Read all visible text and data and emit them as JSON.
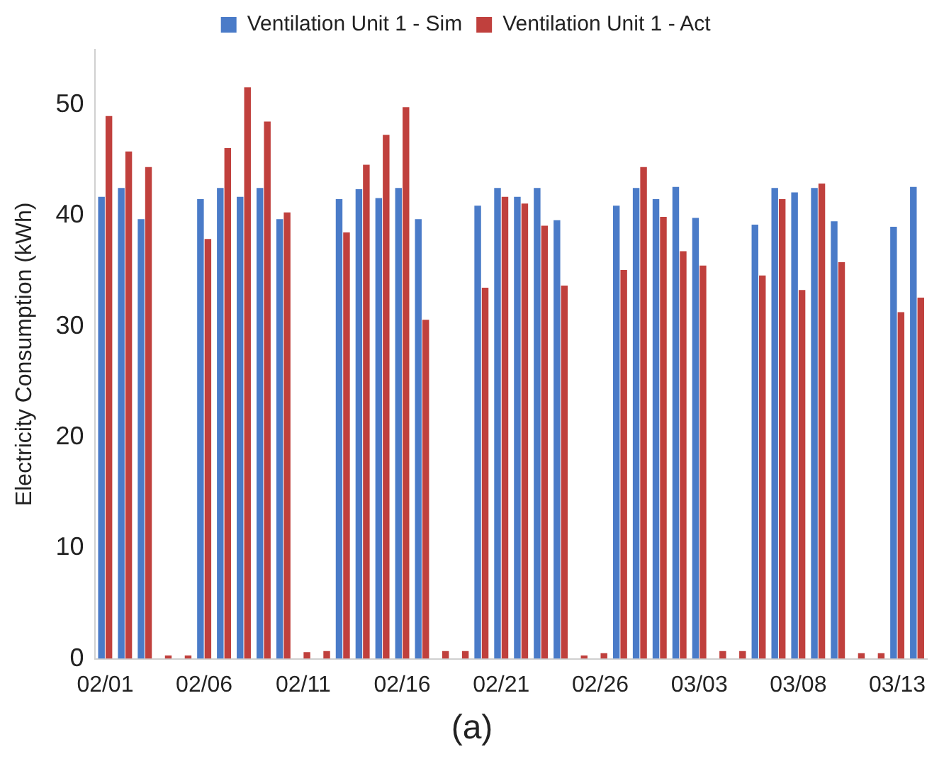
{
  "chart_data": {
    "type": "bar",
    "ylabel": "Electricity Consumption (kWh)",
    "categories": [
      "02/01",
      null,
      null,
      null,
      null,
      "02/06",
      null,
      null,
      null,
      null,
      "02/11",
      null,
      null,
      null,
      null,
      "02/16",
      null,
      null,
      null,
      null,
      "02/21",
      null,
      null,
      null,
      null,
      "02/26",
      null,
      null,
      null,
      null,
      "03/03",
      null,
      null,
      null,
      null,
      "03/08",
      null,
      null,
      null,
      null,
      "03/13",
      null
    ],
    "series": [
      {
        "name": "Ventilation Unit 1 - Sim",
        "color": "#4a7bc8",
        "values": [
          41.7,
          42.5,
          39.7,
          0,
          0,
          41.5,
          42.5,
          41.7,
          42.5,
          39.7,
          0,
          0,
          41.5,
          42.4,
          41.6,
          42.5,
          39.7,
          0,
          0,
          40.9,
          42.5,
          41.7,
          42.5,
          39.6,
          0,
          0,
          40.9,
          42.5,
          41.5,
          42.6,
          39.8,
          0,
          0,
          39.2,
          42.5,
          42.1,
          42.5,
          39.5,
          0,
          0,
          39.0,
          42.6
        ]
      },
      {
        "name": "Ventilation Unit 1 - Act",
        "color": "#c0403d",
        "values": [
          49.0,
          45.8,
          44.4,
          0.3,
          0.3,
          37.9,
          46.1,
          51.6,
          48.5,
          40.3,
          0.6,
          0.7,
          38.5,
          44.6,
          47.3,
          49.8,
          30.6,
          0.7,
          0.7,
          33.5,
          41.7,
          41.1,
          39.1,
          33.7,
          0.3,
          0.5,
          35.1,
          44.4,
          39.9,
          36.8,
          35.5,
          0.7,
          0.7,
          34.6,
          41.5,
          33.3,
          42.9,
          35.8,
          0.5,
          0.5,
          31.3,
          32.6
        ]
      }
    ],
    "ylim": [
      0,
      55
    ],
    "yticks": [
      0,
      10,
      20,
      30,
      40,
      50
    ],
    "grid": false,
    "legend": "top",
    "annotations": [
      "(a)"
    ]
  }
}
